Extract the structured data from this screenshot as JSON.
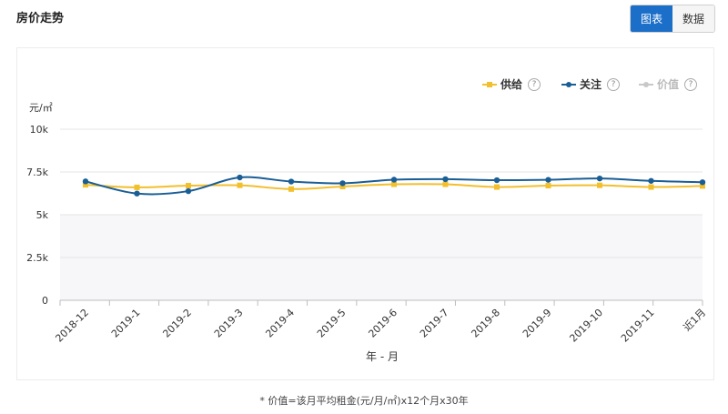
{
  "header": {
    "title": "房价走势"
  },
  "toggle": {
    "chart_label": "图表",
    "data_label": "数据"
  },
  "legend": {
    "items": [
      {
        "label": "供给",
        "help": "?",
        "color": "#f2bf2d",
        "active": true
      },
      {
        "label": "关注",
        "help": "?",
        "color": "#1a5e95",
        "active": true
      },
      {
        "label": "价值",
        "help": "?",
        "color": "#c8c8c8",
        "active": false
      }
    ]
  },
  "chart_data": {
    "type": "line",
    "y_unit": "元/㎡",
    "xlabel": "年 - 月",
    "ylim": [
      0,
      10000
    ],
    "y_ticks": [
      0,
      2500,
      5000,
      7500,
      10000
    ],
    "y_tick_labels": [
      "0",
      "2.5k",
      "5k",
      "7.5k",
      "10k"
    ],
    "categories": [
      "2018-12",
      "2019-1",
      "2019-2",
      "2019-3",
      "2019-4",
      "2019-5",
      "2019-6",
      "2019-7",
      "2019-8",
      "2019-9",
      "2019-10",
      "2019-11",
      "近1月"
    ],
    "series": [
      {
        "name": "供给",
        "color": "#f2bf2d",
        "marker": "square",
        "values": [
          6750,
          6600,
          6700,
          6720,
          6500,
          6650,
          6780,
          6780,
          6620,
          6700,
          6720,
          6620,
          6680
        ]
      },
      {
        "name": "关注",
        "color": "#1a5e95",
        "marker": "circle",
        "values": [
          6950,
          6240,
          6380,
          7180,
          6940,
          6840,
          7050,
          7080,
          7020,
          7040,
          7120,
          6980,
          6900
        ]
      }
    ],
    "grid": true
  },
  "footnote": "* 价值=该月平均租金(元/月/㎡)x12个月x30年"
}
